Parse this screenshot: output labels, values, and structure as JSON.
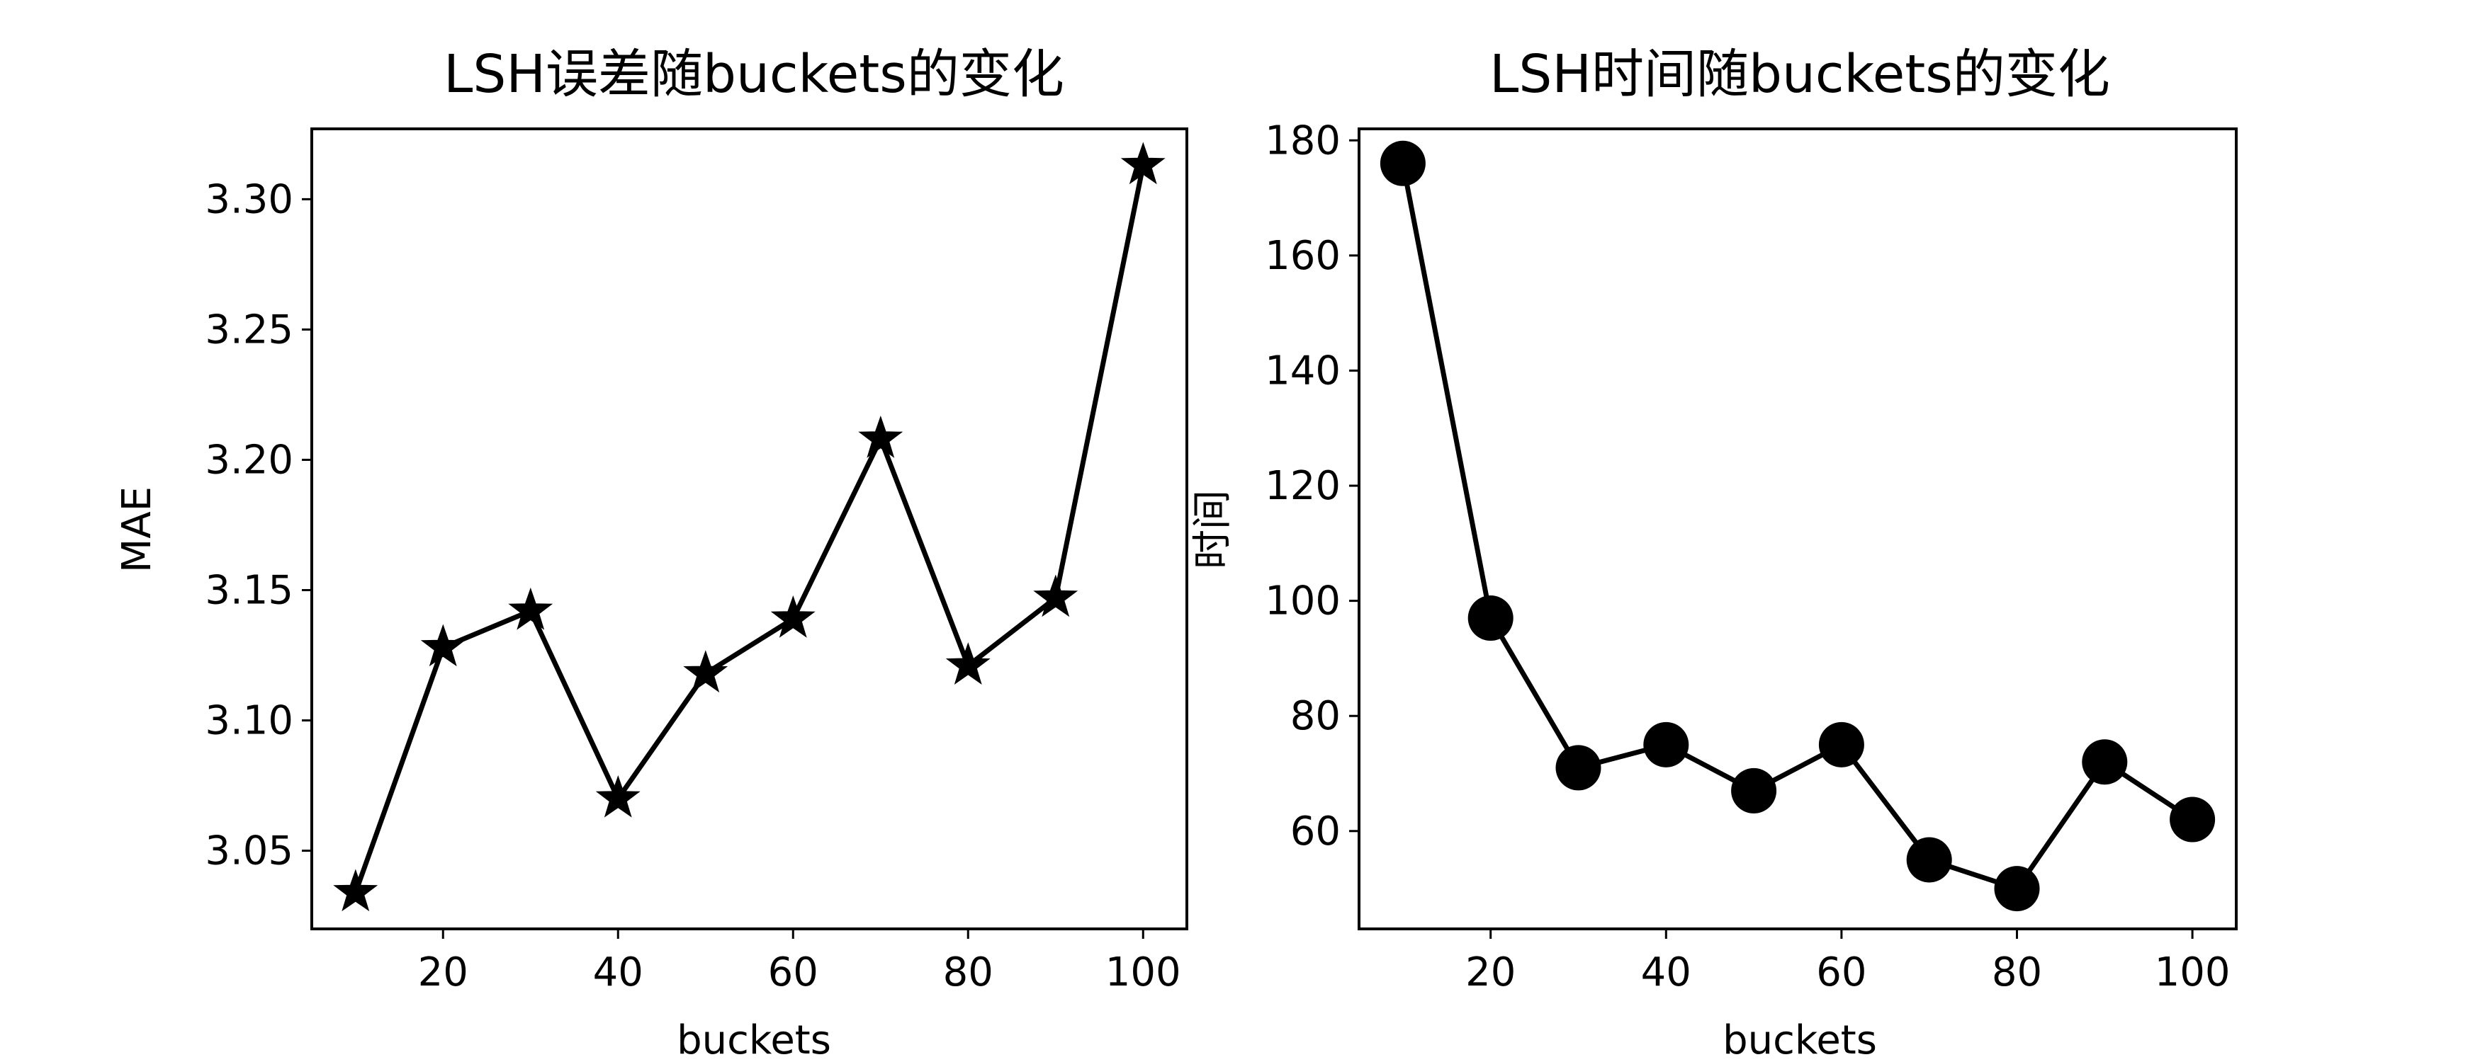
{
  "chart_data": [
    {
      "type": "line",
      "title": "LSH误差随buckets的变化",
      "xlabel": "buckets",
      "ylabel": "MAE",
      "x": [
        10,
        20,
        30,
        40,
        50,
        60,
        70,
        80,
        90,
        100
      ],
      "series": [
        {
          "values": [
            3.034,
            3.128,
            3.142,
            3.07,
            3.118,
            3.139,
            3.208,
            3.121,
            3.147,
            3.313
          ]
        }
      ],
      "xlim": [
        5,
        105
      ],
      "ylim": [
        3.02,
        3.327
      ],
      "xticks": [
        20,
        40,
        60,
        80,
        100
      ],
      "yticks": [
        3.05,
        3.1,
        3.15,
        3.2,
        3.25,
        3.3
      ],
      "ytick_labels": [
        "3.05",
        "3.10",
        "3.15",
        "3.20",
        "3.25",
        "3.30"
      ],
      "marker": "star",
      "color": "#000000",
      "grid": false
    },
    {
      "type": "line",
      "title": "LSH时间随buckets的变化",
      "xlabel": "buckets",
      "ylabel": "时间",
      "x": [
        10,
        20,
        30,
        40,
        50,
        60,
        70,
        80,
        90,
        100
      ],
      "series": [
        {
          "values": [
            176,
            97,
            71,
            75,
            67,
            75,
            55,
            50,
            72,
            62
          ]
        }
      ],
      "xlim": [
        5,
        105
      ],
      "ylim": [
        43,
        182
      ],
      "xticks": [
        20,
        40,
        60,
        80,
        100
      ],
      "yticks": [
        60,
        80,
        100,
        120,
        140,
        160,
        180
      ],
      "ytick_labels": [
        "60",
        "80",
        "100",
        "120",
        "140",
        "160",
        "180"
      ],
      "marker": "circle",
      "color": "#000000",
      "grid": false
    }
  ]
}
